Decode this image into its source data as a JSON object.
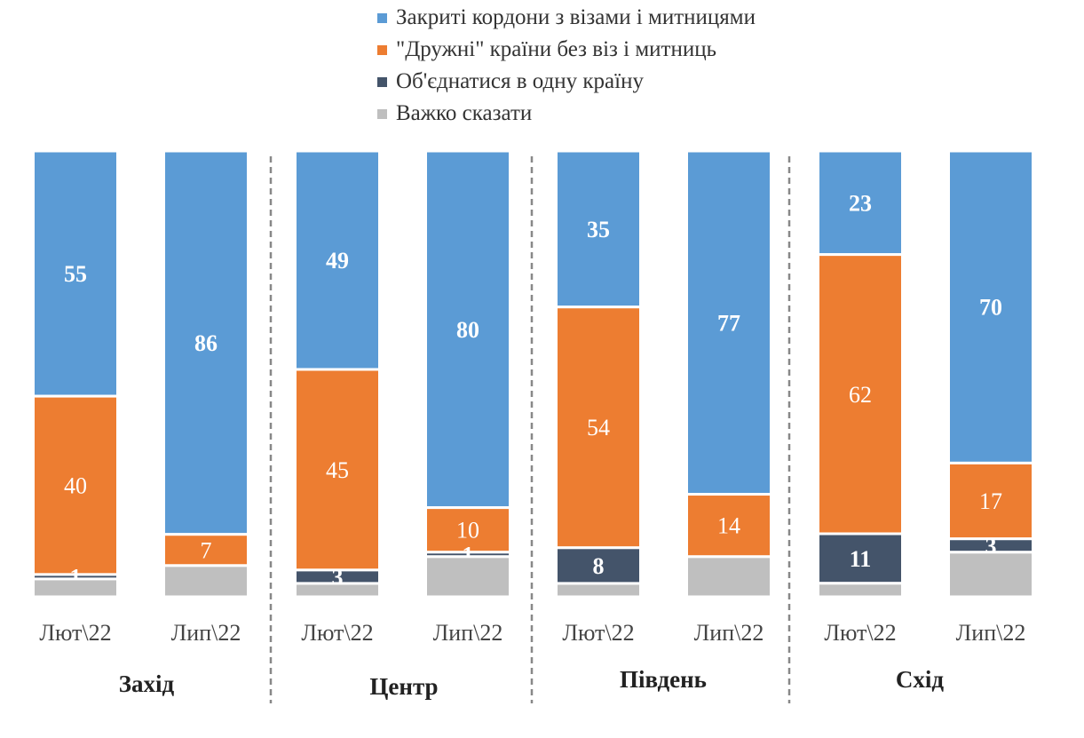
{
  "chart_data": {
    "type": "bar",
    "stacked": true,
    "normalized": true,
    "legend": {
      "placement": "top"
    },
    "series": [
      {
        "name": "Закриті кордони з візами і митницями",
        "color": "#5B9BD5",
        "values": [
          55,
          86,
          49,
          80,
          35,
          77,
          23,
          70
        ],
        "label_bold": true
      },
      {
        "name": "\"Дружні\" країни без віз і митниць",
        "color": "#ED7D31",
        "values": [
          40,
          7,
          45,
          10,
          54,
          14,
          62,
          17
        ],
        "label_bold": false
      },
      {
        "name": "Об'єднатися в одну країну",
        "color": "#44546A",
        "values": [
          1,
          0,
          3,
          1,
          8,
          0,
          11,
          3
        ],
        "label_bold": true
      },
      {
        "name": "Важко сказати",
        "color": "#BFBFBF",
        "values": [
          4,
          7,
          3,
          9,
          3,
          9,
          3,
          10
        ],
        "show_labels": false
      }
    ],
    "categories": [
      "Лют\\22",
      "Лип\\22",
      "Лют\\22",
      "Лип\\22",
      "Лют\\22",
      "Лип\\22",
      "Лют\\22",
      "Лип\\22"
    ],
    "groups": [
      "Захід",
      "Центр",
      "Південь",
      "Схід"
    ],
    "group_separators": "dashed"
  }
}
